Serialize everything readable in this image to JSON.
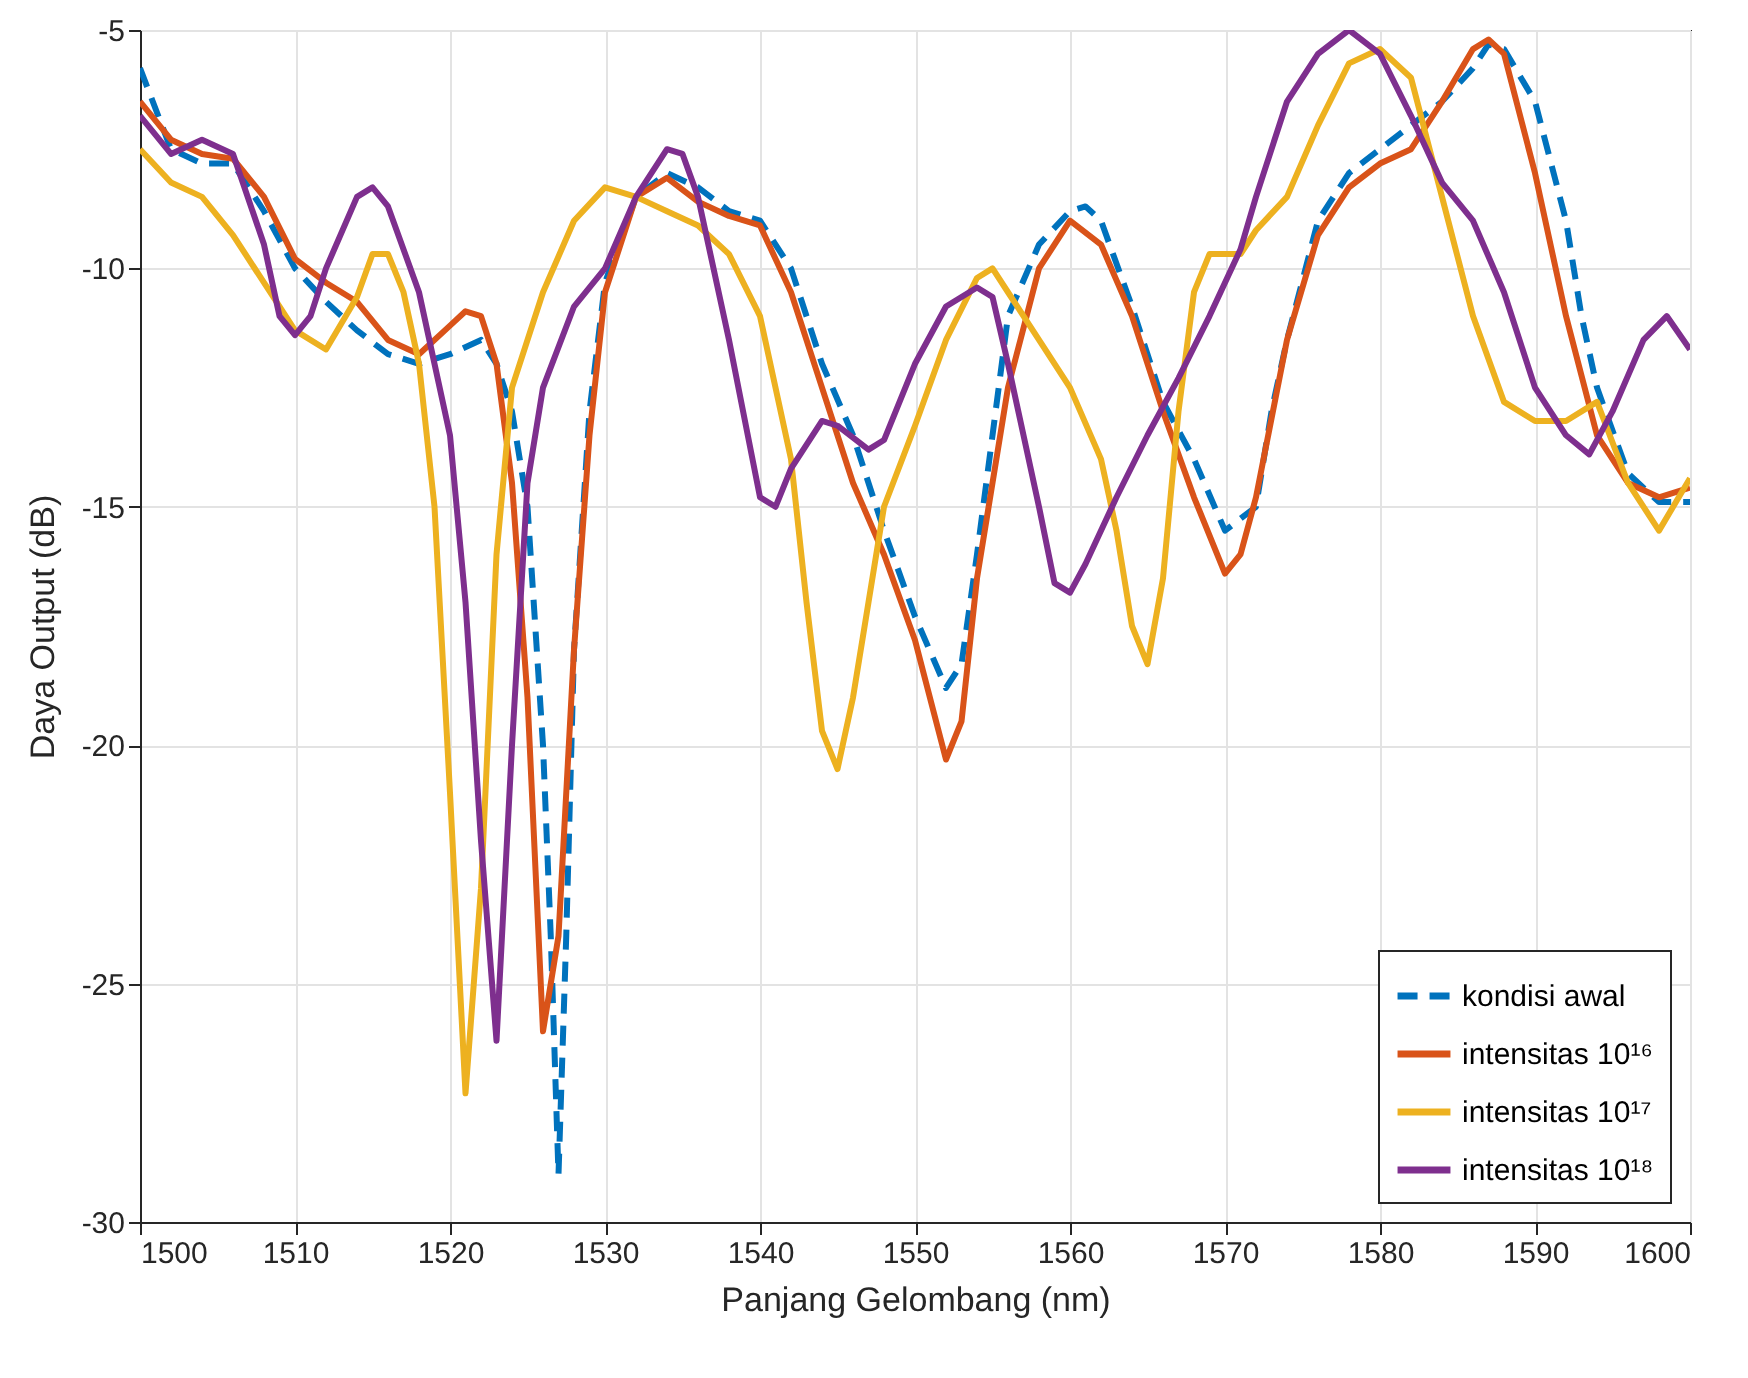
{
  "chart_data": {
    "type": "line",
    "xlabel": "Panjang Gelombang (nm)",
    "ylabel": "Daya Output (dB)",
    "xlim": [
      1500,
      1600
    ],
    "ylim": [
      -30,
      -5
    ],
    "xticks": [
      1500,
      1510,
      1520,
      1530,
      1540,
      1550,
      1560,
      1570,
      1580,
      1590,
      1600
    ],
    "yticks": [
      -30,
      -25,
      -20,
      -15,
      -10,
      -5
    ],
    "grid": true,
    "legend": "bottom right",
    "series": [
      {
        "name": "kondisi awal",
        "color": "#0072bd",
        "line_style": "dashed",
        "x": [
          1500,
          1502,
          1504,
          1506,
          1508,
          1510,
          1512,
          1514,
          1516,
          1518,
          1520,
          1522,
          1523,
          1524,
          1525,
          1526,
          1526.5,
          1527,
          1527.5,
          1528,
          1529,
          1530,
          1532,
          1534,
          1536,
          1538,
          1540,
          1542,
          1544,
          1546,
          1548,
          1550,
          1552,
          1553,
          1554,
          1555,
          1556,
          1558,
          1560,
          1561,
          1562,
          1564,
          1566,
          1568,
          1570,
          1572,
          1573,
          1574,
          1576,
          1578,
          1580,
          1582,
          1584,
          1586,
          1587,
          1588,
          1590,
          1592,
          1593,
          1594,
          1596,
          1598,
          1600
        ],
        "values": [
          -5.8,
          -7.5,
          -7.8,
          -7.8,
          -8.8,
          -10,
          -10.7,
          -11.3,
          -11.8,
          -12,
          -11.8,
          -11.5,
          -12,
          -13,
          -15,
          -20,
          -24,
          -29,
          -24,
          -18,
          -13,
          -10.3,
          -8.5,
          -8,
          -8.3,
          -8.8,
          -9,
          -10,
          -12,
          -13.5,
          -15.5,
          -17.3,
          -18.8,
          -18.3,
          -16,
          -13.5,
          -11,
          -9.5,
          -8.8,
          -8.7,
          -9,
          -10.8,
          -12.8,
          -14,
          -15.5,
          -15,
          -13,
          -11.5,
          -9,
          -8,
          -7.5,
          -7,
          -6.5,
          -5.8,
          -5.3,
          -5.4,
          -6.5,
          -9,
          -11,
          -12.5,
          -14.3,
          -14.9,
          -14.9
        ]
      },
      {
        "name": "intensitas 10¹⁶",
        "color": "#d95319",
        "line_style": "solid",
        "x": [
          1500,
          1502,
          1504,
          1506,
          1508,
          1510,
          1512,
          1514,
          1516,
          1518,
          1520,
          1521,
          1522,
          1523,
          1524,
          1525,
          1526,
          1527,
          1528,
          1529,
          1530,
          1532,
          1534,
          1536,
          1538,
          1540,
          1542,
          1544,
          1546,
          1548,
          1550,
          1552,
          1553,
          1554,
          1556,
          1558,
          1560,
          1562,
          1564,
          1566,
          1568,
          1570,
          1571,
          1572,
          1574,
          1576,
          1578,
          1580,
          1582,
          1584,
          1586,
          1587,
          1588,
          1590,
          1592,
          1594,
          1596,
          1598,
          1600
        ],
        "values": [
          -6.5,
          -7.3,
          -7.6,
          -7.7,
          -8.5,
          -9.8,
          -10.3,
          -10.7,
          -11.5,
          -11.8,
          -11.2,
          -10.9,
          -11,
          -12,
          -14.5,
          -19,
          -26,
          -24,
          -18,
          -13.5,
          -10.5,
          -8.5,
          -8.1,
          -8.6,
          -8.9,
          -9.1,
          -10.5,
          -12.5,
          -14.5,
          -16,
          -17.8,
          -20.3,
          -19.5,
          -16.5,
          -12.5,
          -10,
          -9,
          -9.5,
          -11,
          -13,
          -14.8,
          -16.4,
          -16,
          -14.8,
          -11.5,
          -9.3,
          -8.3,
          -7.8,
          -7.5,
          -6.5,
          -5.4,
          -5.2,
          -5.5,
          -8,
          -11,
          -13.5,
          -14.5,
          -14.8,
          -14.6
        ]
      },
      {
        "name": "intensitas 10¹⁷",
        "color": "#edb120",
        "line_style": "solid",
        "x": [
          1500,
          1502,
          1504,
          1506,
          1508,
          1510,
          1512,
          1514,
          1515,
          1516,
          1517,
          1518,
          1519,
          1520,
          1521,
          1522,
          1523,
          1524,
          1526,
          1528,
          1530,
          1532,
          1534,
          1536,
          1538,
          1540,
          1542,
          1543,
          1544,
          1545,
          1546,
          1547,
          1548,
          1550,
          1552,
          1554,
          1555,
          1556,
          1558,
          1560,
          1562,
          1563,
          1564,
          1565,
          1566,
          1567,
          1568,
          1569,
          1571,
          1572,
          1574,
          1576,
          1578,
          1580,
          1582,
          1584,
          1586,
          1588,
          1590,
          1592,
          1594,
          1596,
          1598,
          1600
        ],
        "values": [
          -7.5,
          -8.2,
          -8.5,
          -9.3,
          -10.3,
          -11.3,
          -11.7,
          -10.6,
          -9.7,
          -9.7,
          -10.5,
          -12,
          -15,
          -21,
          -27.3,
          -23,
          -16,
          -12.5,
          -10.5,
          -9,
          -8.3,
          -8.5,
          -8.8,
          -9.1,
          -9.7,
          -11,
          -14,
          -17,
          -19.7,
          -20.5,
          -19,
          -17,
          -15,
          -13.3,
          -11.5,
          -10.2,
          -10,
          -10.5,
          -11.5,
          -12.5,
          -14,
          -15.5,
          -17.5,
          -18.3,
          -16.5,
          -13,
          -10.5,
          -9.7,
          -9.7,
          -9.2,
          -8.5,
          -7,
          -5.7,
          -5.4,
          -6,
          -8.5,
          -11,
          -12.8,
          -13.2,
          -13.2,
          -12.8,
          -14.5,
          -15.5,
          -14.4
        ]
      },
      {
        "name": "intensitas 10¹⁸",
        "color": "#7e2f8e",
        "line_style": "solid",
        "x": [
          1500,
          1502,
          1504,
          1506,
          1508,
          1509,
          1510,
          1511,
          1512,
          1514,
          1515,
          1516,
          1518,
          1520,
          1521,
          1522,
          1523,
          1524,
          1525,
          1526,
          1528,
          1530,
          1532,
          1534,
          1535,
          1536,
          1538,
          1540,
          1541,
          1542,
          1544,
          1545,
          1547,
          1548,
          1550,
          1552,
          1554,
          1555,
          1556,
          1558,
          1559,
          1560,
          1561,
          1563,
          1565,
          1567,
          1569,
          1571,
          1572,
          1574,
          1576,
          1578,
          1580,
          1582,
          1584,
          1586,
          1588,
          1590,
          1592,
          1593.5,
          1595,
          1597,
          1598.5,
          1600
        ],
        "values": [
          -6.8,
          -7.6,
          -7.3,
          -7.6,
          -9.5,
          -11,
          -11.4,
          -11,
          -10,
          -8.5,
          -8.3,
          -8.7,
          -10.5,
          -13.5,
          -17,
          -22,
          -26.2,
          -20,
          -14.5,
          -12.5,
          -10.8,
          -10,
          -8.5,
          -7.5,
          -7.6,
          -8.5,
          -11.5,
          -14.8,
          -15,
          -14.2,
          -13.2,
          -13.3,
          -13.8,
          -13.6,
          -12,
          -10.8,
          -10.4,
          -10.6,
          -12,
          -15,
          -16.6,
          -16.8,
          -16.2,
          -14.8,
          -13.5,
          -12.3,
          -11,
          -9.6,
          -8.5,
          -6.5,
          -5.5,
          -5,
          -5.5,
          -6.8,
          -8.2,
          -9,
          -10.5,
          -12.5,
          -13.5,
          -13.9,
          -13,
          -11.5,
          -11,
          -11.7
        ]
      }
    ]
  }
}
